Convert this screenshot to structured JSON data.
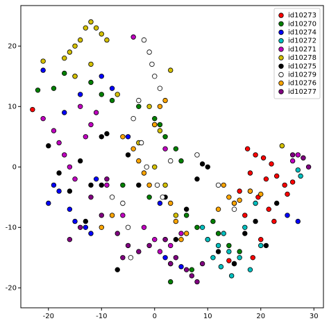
{
  "chart_data": {
    "type": "scatter",
    "legend": "upper right",
    "grid": false,
    "xlim": [
      -25.2,
      31.8
    ],
    "ylim": [
      -23.3,
      26.7
    ],
    "xticks": [
      -20,
      -10,
      0,
      10,
      20,
      30
    ],
    "yticks": [
      -20,
      -10,
      0,
      10,
      20
    ],
    "series": [
      {
        "name": "id10273",
        "color": "#ff0000",
        "x": [
          -23,
          17.5,
          19,
          20.5,
          22,
          18,
          21,
          23,
          24.5,
          16,
          19.5,
          25,
          15,
          21.5,
          17,
          22.5,
          20,
          26,
          18.5,
          14
        ],
        "y": [
          9.5,
          3,
          2,
          1.5,
          0.5,
          -1,
          -2,
          -1.5,
          -3,
          -4,
          -5,
          -4.5,
          -6,
          -7,
          -8,
          -9,
          -12,
          -2.5,
          -15,
          -15.5
        ]
      },
      {
        "name": "id10270",
        "color": "#008000",
        "x": [
          -22,
          -19,
          -17,
          -15,
          -12,
          -10,
          -8,
          -3,
          0,
          1,
          2,
          4,
          5,
          -1,
          6,
          8,
          10,
          12,
          14,
          16,
          3,
          7,
          11,
          -6
        ],
        "y": [
          12.7,
          13,
          15.5,
          15,
          14,
          12,
          11,
          10,
          8,
          7,
          5,
          3,
          1,
          -5,
          -8,
          -10,
          -12,
          -11,
          -13,
          -14,
          -19,
          -17,
          -9,
          -3
        ]
      },
      {
        "name": "id10274",
        "color": "#0000ff",
        "x": [
          -21,
          -20,
          -18,
          -16,
          -15,
          -13,
          -12,
          -19,
          -17,
          -8,
          2,
          3,
          5,
          25,
          27,
          -14,
          -11,
          1,
          -5,
          -10
        ],
        "y": [
          16,
          -6,
          -4,
          -7,
          -9,
          -10,
          -11,
          -3,
          9,
          13,
          -15,
          -16,
          -16.5,
          -8,
          -9,
          12,
          -2,
          -6,
          5,
          15
        ]
      },
      {
        "name": "id10272",
        "color": "#00bfbf",
        "x": [
          10,
          12,
          14,
          15,
          16,
          18,
          20,
          13,
          11,
          17,
          27,
          27.5,
          9,
          19,
          14.5,
          12.5
        ],
        "y": [
          -12,
          -13,
          -14,
          -16,
          -15,
          -17,
          -13,
          -11,
          -15,
          -10,
          -0.5,
          -1.5,
          -10,
          -6,
          -18,
          -16.5
        ]
      },
      {
        "name": "id10271",
        "color": "#bf00bf",
        "x": [
          -21,
          -19,
          -18,
          -17,
          -16,
          -15,
          -13,
          -12,
          -11,
          -4,
          -2,
          0,
          1,
          3,
          -6,
          26,
          27,
          -9,
          -14,
          2,
          5
        ],
        "y": [
          8,
          6,
          4,
          2,
          0,
          -2,
          5,
          7,
          9,
          21.5,
          -10,
          -12,
          -14,
          -13,
          -8,
          1,
          2,
          -3,
          10,
          3,
          -11
        ]
      },
      {
        "name": "id10278",
        "color": "#d4c000",
        "x": [
          -21,
          -17,
          -16,
          -15,
          -14,
          -13,
          -12,
          -11,
          -10,
          -9,
          -15,
          -12,
          -1,
          1,
          3,
          -3,
          0,
          2,
          24,
          -7,
          4
        ],
        "y": [
          17.5,
          18,
          19,
          20,
          21,
          23,
          24,
          23,
          22,
          21,
          15,
          17,
          10,
          6,
          16,
          4,
          0,
          -3,
          3.5,
          12,
          -8
        ]
      },
      {
        "name": "id10275",
        "color": "#000000",
        "x": [
          -20,
          -18,
          -16,
          -14,
          -12,
          -10,
          -9,
          -7,
          -5,
          -3,
          0,
          2,
          4,
          6,
          8,
          10,
          12,
          15,
          17,
          19,
          21,
          23,
          18,
          -10,
          -13,
          9
        ],
        "y": [
          3.5,
          -1,
          -4,
          1,
          -3,
          5,
          5.5,
          -17,
          2,
          -3,
          7,
          -5,
          -12,
          -7,
          -2,
          0,
          -14,
          -16,
          -11,
          -9,
          -13,
          -6,
          -4,
          -3,
          -9,
          0.5
        ]
      },
      {
        "name": "id10279",
        "color": "#ffffff",
        "x": [
          -2,
          -1,
          -0.5,
          0,
          1,
          -3,
          -4,
          -2.5,
          -1.5,
          0.5,
          1.5,
          -6,
          -5,
          -8,
          -4.5,
          2,
          3,
          8,
          12,
          15
        ],
        "y": [
          21,
          19,
          17,
          15,
          13,
          11,
          8,
          4,
          0,
          -3,
          -5,
          -6,
          -10,
          -5,
          -15,
          -12,
          1,
          2,
          -3,
          -7
        ]
      },
      {
        "name": "id10276",
        "color": "#ffa500",
        "x": [
          -6,
          -4,
          -3,
          -2,
          -1,
          0,
          1,
          2,
          3,
          4,
          -8,
          -10,
          5,
          14,
          15,
          16,
          18,
          20,
          12,
          13,
          6
        ],
        "y": [
          5,
          3,
          1,
          -1,
          -3,
          7,
          10,
          11,
          -6,
          -9,
          -8,
          -10,
          -12,
          -5,
          -6,
          -5.5,
          -4,
          -4.5,
          -7,
          -3,
          -11
        ]
      },
      {
        "name": "id10277",
        "color": "#800080",
        "x": [
          -12,
          -10,
          -7,
          -5,
          -3,
          -1,
          2,
          4,
          6,
          8,
          -14,
          -9,
          -6,
          28,
          29,
          26,
          7,
          9,
          -16,
          3
        ],
        "y": [
          -5,
          -8,
          -11,
          -13,
          -14,
          -13,
          -12,
          -15,
          -17,
          -19,
          -10,
          -2,
          -15,
          1.5,
          0,
          2,
          -18,
          -16,
          -12,
          -16
        ]
      }
    ]
  }
}
